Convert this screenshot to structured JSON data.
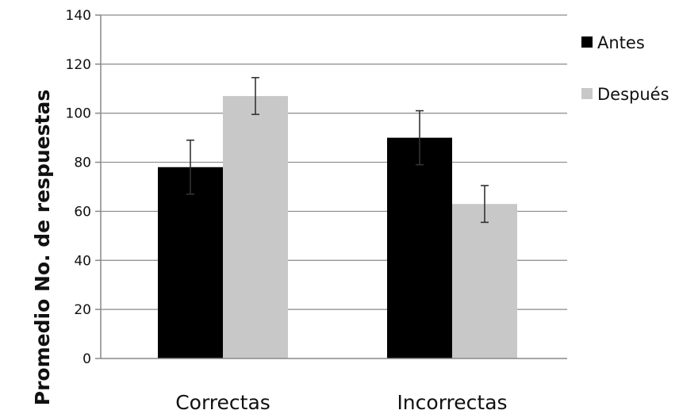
{
  "chart_data": {
    "type": "bar",
    "title": "",
    "xlabel": "",
    "ylabel": "Promedio No. de respuestas",
    "ylim": [
      0,
      140
    ],
    "yticks": [
      0,
      20,
      40,
      60,
      80,
      100,
      120,
      140
    ],
    "grid": true,
    "legend_position": "right",
    "categories": [
      "Correctas",
      "Incorrectas"
    ],
    "series": [
      {
        "name": "Antes",
        "color": "#000000",
        "values": [
          78,
          90
        ],
        "errors": [
          11,
          11
        ]
      },
      {
        "name": "Después",
        "color": "#c8c8c8",
        "values": [
          107,
          63
        ],
        "errors": [
          7.5,
          7.5
        ]
      }
    ]
  }
}
